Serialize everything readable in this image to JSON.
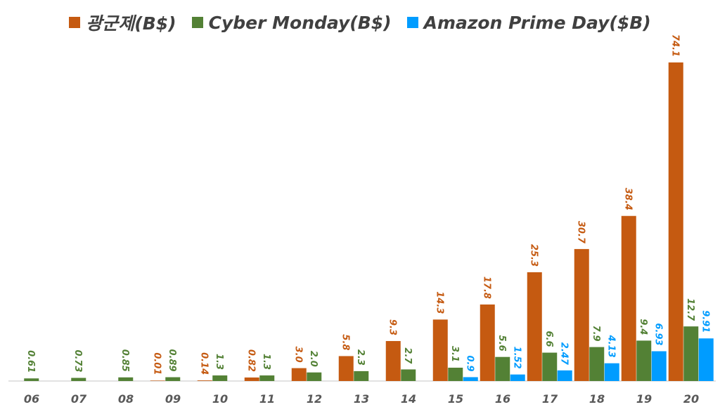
{
  "chart_data": {
    "type": "bar",
    "title": "",
    "xlabel": "",
    "ylabel": "",
    "ylim": [
      0,
      75
    ],
    "grid": false,
    "legend": "top",
    "categories": [
      "06",
      "07",
      "08",
      "09",
      "10",
      "11",
      "12",
      "13",
      "14",
      "15",
      "16",
      "17",
      "18",
      "19",
      "20"
    ],
    "series": [
      {
        "name": "광군제(B$)",
        "color": "#C55A11",
        "values": [
          null,
          null,
          null,
          0.01,
          0.14,
          0.82,
          3.0,
          5.8,
          9.3,
          14.3,
          17.8,
          25.3,
          30.7,
          38.4,
          74.1
        ],
        "labels": [
          null,
          null,
          null,
          "0.01",
          "0.14",
          "0.82",
          "3.0",
          "5.8",
          "9.3",
          "14.3",
          "17.8",
          "25.3",
          "30.7",
          "38.4",
          "74.1"
        ]
      },
      {
        "name": "Cyber Monday(B$)",
        "color": "#538135",
        "values": [
          0.61,
          0.73,
          0.85,
          0.89,
          1.3,
          1.3,
          2.0,
          2.3,
          2.7,
          3.1,
          5.6,
          6.6,
          7.9,
          9.4,
          12.7
        ],
        "labels": [
          "0.61",
          "0.73",
          "0.85",
          "0.89",
          "1.3",
          "1.3",
          "2.0",
          "2.3",
          "2.7",
          "3.1",
          "5.6",
          "6.6",
          "7.9",
          "9.4",
          "12.7"
        ]
      },
      {
        "name": "Amazon Prime Day($B)",
        "color": "#009CFF",
        "values": [
          null,
          null,
          null,
          null,
          null,
          null,
          null,
          null,
          null,
          0.9,
          1.52,
          2.47,
          4.13,
          6.93,
          9.91
        ],
        "labels": [
          null,
          null,
          null,
          null,
          null,
          null,
          null,
          null,
          null,
          "0.9",
          "1.52",
          "2.47",
          "4.13",
          "6.93",
          "9.91"
        ]
      }
    ]
  }
}
